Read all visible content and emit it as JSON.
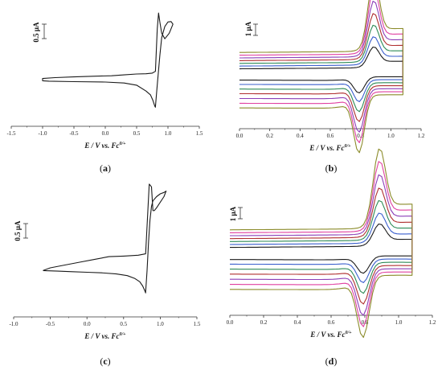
{
  "figure": {
    "panels": [
      {
        "id": "a",
        "label_open": "(",
        "label_letter": "a",
        "label_close": ")"
      },
      {
        "id": "b",
        "label_open": "(",
        "label_letter": "b",
        "label_close": ")"
      },
      {
        "id": "c",
        "label_open": "(",
        "label_letter": "c",
        "label_close": ")"
      },
      {
        "id": "d",
        "label_open": "(",
        "label_letter": "d",
        "label_close": ")"
      }
    ]
  },
  "chart_data": [
    {
      "panel": "a",
      "type": "line",
      "xlabel": "E / V vs. Fc",
      "xlabel_sup": "0/+",
      "xlim": [
        -1.5,
        1.5
      ],
      "xticks": [
        "-1.5",
        "-1.0",
        "-0.5",
        "0.0",
        "0.5",
        "1.0",
        "1.5"
      ],
      "scale_bar": "0.5 μA",
      "series": [
        {
          "color": "#1a1a1a",
          "x": [
            0.1,
            -0.2,
            -0.5,
            -0.8,
            -1.0,
            -1.0,
            -0.9,
            -0.5,
            0.0,
            0.3,
            0.5,
            0.65,
            0.72,
            0.76,
            0.79,
            0.8,
            0.8,
            0.83,
            0.87,
            0.9,
            0.95,
            1.0,
            1.05,
            1.08,
            1.02,
            0.95,
            0.9,
            0.87,
            0.85,
            0.83,
            0.8,
            0.75,
            0.65,
            0.5,
            0.3,
            0.1
          ],
          "y": [
            -0.2,
            -0.22,
            -0.25,
            -0.28,
            -0.32,
            -0.42,
            -0.44,
            -0.46,
            -0.48,
            -0.52,
            -0.62,
            -0.88,
            -1.05,
            -1.3,
            -1.55,
            -1.6,
            -1.58,
            -0.6,
            0.7,
            1.5,
            2.0,
            2.2,
            2.22,
            2.1,
            1.7,
            1.45,
            1.7,
            2.2,
            2.6,
            1.9,
            0.0,
            -0.08,
            -0.11,
            -0.12,
            -0.16,
            -0.2
          ]
        }
      ]
    },
    {
      "panel": "b",
      "type": "line",
      "xlabel": "E / V vs. Fc",
      "xlabel_sup": "0/+",
      "xlim": [
        0.0,
        1.2
      ],
      "xticks": [
        "0.0",
        "0.2",
        "0.4",
        "0.6",
        "0.8",
        "1.0",
        "1.2"
      ],
      "scale_bar": "1 μA",
      "series": [
        {
          "color": "#1a1a1a",
          "scale": 0.28
        },
        {
          "color": "#3a5fcd",
          "scale": 0.38
        },
        {
          "color": "#2e8b57",
          "scale": 0.5
        },
        {
          "color": "#b03030",
          "scale": 0.62
        },
        {
          "color": "#8b3fb8",
          "scale": 0.75
        },
        {
          "color": "#e040a0",
          "scale": 0.88
        },
        {
          "color": "#8b8b2a",
          "scale": 1.0
        }
      ]
    },
    {
      "panel": "c",
      "type": "line",
      "xlabel": "E / V vs. Fc",
      "xlabel_sup": "0/+",
      "xlim": [
        -1.0,
        1.5
      ],
      "xticks": [
        "-1.0",
        "-0.5",
        "0.0",
        "0.5",
        "1.0",
        "1.5"
      ],
      "scale_bar": "0.5 μA",
      "series": [
        {
          "color": "#1a1a1a",
          "x": [
            -0.6,
            -0.4,
            -0.2,
            0.0,
            0.2,
            0.4,
            0.55,
            0.65,
            0.72,
            0.76,
            0.79,
            0.8,
            0.8,
            0.82,
            0.84,
            0.86,
            0.88,
            0.9,
            0.95,
            1.0,
            1.05,
            1.08,
            1.05,
            1.0,
            0.95,
            0.92,
            0.9,
            0.88,
            0.85,
            0.8,
            0.7,
            0.5,
            0.3,
            0.1,
            -0.1,
            -0.3,
            -0.5,
            -0.6
          ],
          "y": [
            -0.6,
            -0.62,
            -0.64,
            -0.66,
            -0.68,
            -0.72,
            -0.78,
            -0.88,
            -1.0,
            -1.15,
            -1.32,
            -1.4,
            -1.38,
            -0.6,
            0.4,
            1.2,
            1.7,
            1.9,
            2.05,
            2.15,
            2.2,
            2.25,
            2.05,
            1.85,
            1.65,
            1.55,
            1.55,
            2.4,
            2.5,
            0.0,
            -0.05,
            -0.08,
            -0.1,
            -0.2,
            -0.3,
            -0.4,
            -0.5,
            -0.6
          ]
        }
      ]
    },
    {
      "panel": "d",
      "type": "line",
      "xlabel": "E / V vs. Fc",
      "xlabel_sup": "0/+",
      "xlim": [
        0.0,
        1.2
      ],
      "xticks": [
        "0.0",
        "0.2",
        "0.4",
        "0.6",
        "0.8",
        "1.0",
        "1.2"
      ],
      "scale_bar": "1 μA",
      "series": [
        {
          "color": "#1a1a1a",
          "scale": 0.28
        },
        {
          "color": "#3a5fcd",
          "scale": 0.38
        },
        {
          "color": "#2e8b57",
          "scale": 0.5
        },
        {
          "color": "#b03030",
          "scale": 0.62
        },
        {
          "color": "#8b3fb8",
          "scale": 0.75
        },
        {
          "color": "#e040a0",
          "scale": 0.88
        },
        {
          "color": "#8b8b2a",
          "scale": 1.0
        }
      ]
    }
  ]
}
